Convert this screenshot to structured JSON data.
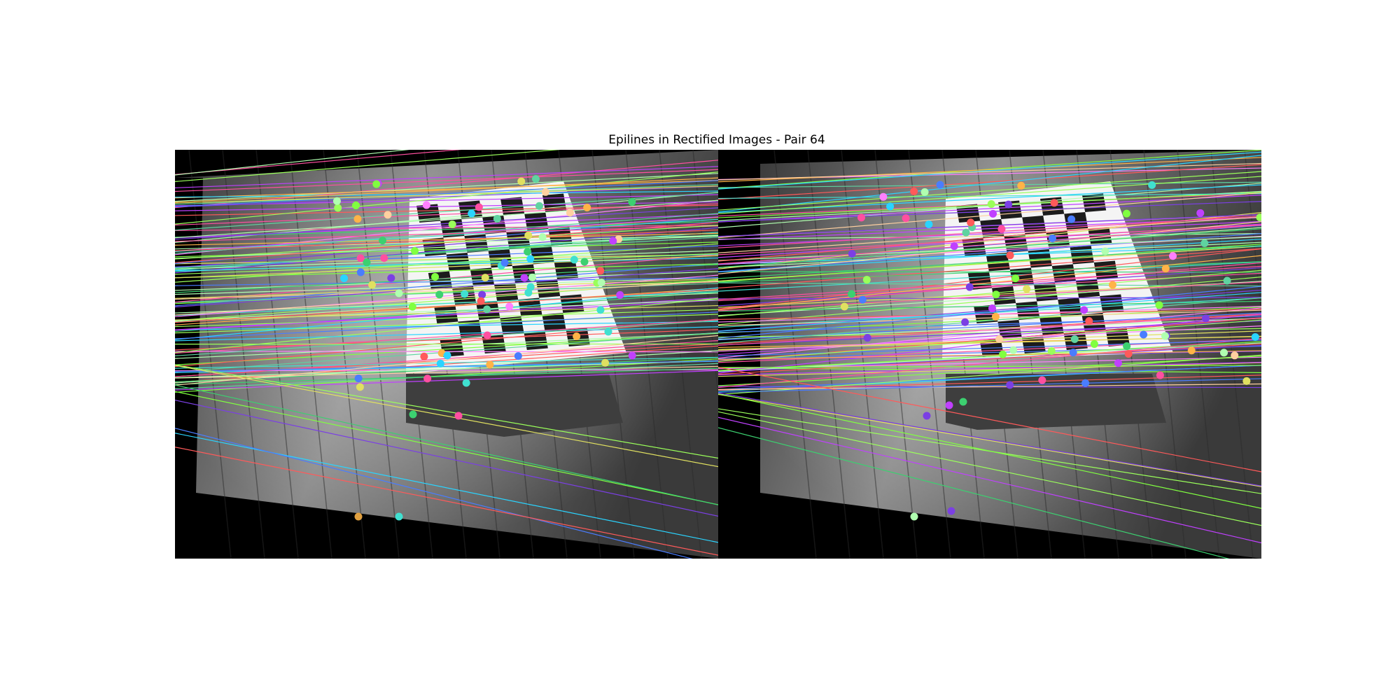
{
  "figure": {
    "title": "Epilines in Rectified Images - Pair 64"
  },
  "colors": {
    "floor_dark": "#3a3a3a",
    "floor_light": "#8a8a8a",
    "board_white": "#f4f4f4",
    "board_black": "#1c1c1c",
    "background": "#000000"
  },
  "panels": [
    {
      "name": "left-rectified-image",
      "icon": "camera-image"
    },
    {
      "name": "right-rectified-image",
      "icon": "camera-image"
    }
  ]
}
